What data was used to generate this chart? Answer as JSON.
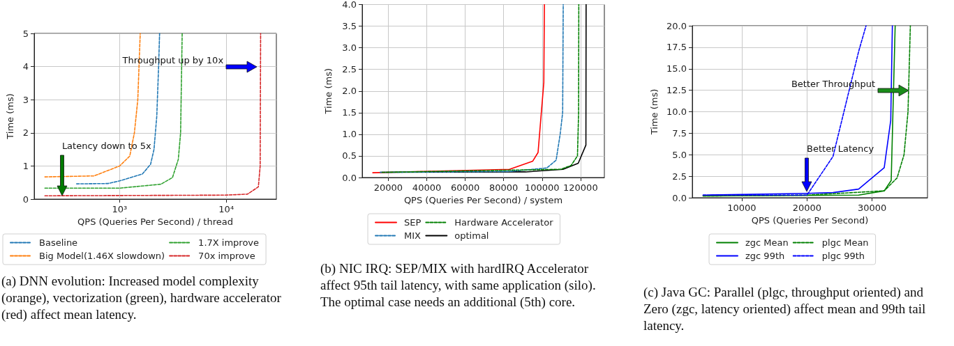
{
  "chart_data": [
    {
      "type": "line",
      "xlabel": "QPS (Queries Per Second) / thread",
      "ylabel": "Time (ms)",
      "log": "x",
      "xlim": [
        158,
        29500
      ],
      "xticks": [
        {
          "value": 1000,
          "label": "10³"
        },
        {
          "value": 10000,
          "label": "10⁴"
        }
      ],
      "ylim": [
        0,
        5
      ],
      "yticks": [
        0,
        1,
        2,
        3,
        4,
        5
      ],
      "grid": true,
      "legend": "bottom",
      "marker": "none",
      "series": [
        {
          "name": "Baseline",
          "color": "#1f77b4",
          "line_style": "dashed",
          "x": [
            395,
            776,
            1000,
            1637,
            1950,
            2100,
            2230,
            2320,
            2370
          ],
          "values": [
            0.46,
            0.47,
            0.55,
            0.76,
            1.05,
            1.5,
            2.5,
            4,
            5
          ]
        },
        {
          "name": "Big Model(1.46X slowdown)",
          "color": "#ff7f0e",
          "line_style": "dashed",
          "x": [
            199,
            575,
            1000,
            1245,
            1375,
            1480,
            1560
          ],
          "values": [
            0.67,
            0.7,
            1.0,
            1.3,
            2.0,
            3,
            5
          ]
        },
        {
          "name": "1.7X improve",
          "color": "#2ca02c",
          "line_style": "dashed",
          "x": [
            199,
            1000,
            2440,
            3130,
            3550,
            3730,
            3860
          ],
          "values": [
            0.33,
            0.33,
            0.45,
            0.65,
            1.2,
            2,
            5
          ]
        },
        {
          "name": "70x improve",
          "color": "#d62728",
          "line_style": "dashed",
          "x": [
            199,
            9850,
            15800,
            20000,
            20800,
            21000
          ],
          "values": [
            0.1,
            0.12,
            0.15,
            0.37,
            1,
            5
          ]
        }
      ],
      "annotations": [
        "Throughput up by 10x",
        "Latency down to 5x",
        "(a) DNN evolution: Increased model complexity (orange), vectorization (green), hardware accelerator (red) affect mean latency."
      ]
    },
    {
      "type": "line",
      "xlabel": "QPS (Queries Per Second) / system",
      "ylabel": "Time (ms)",
      "xlim": [
        6400,
        132400
      ],
      "xticks": [
        20000,
        40000,
        60000,
        80000,
        100000,
        120000
      ],
      "ylim": [
        0,
        4
      ],
      "yticks": [
        {
          "value": 0,
          "label": "0.0"
        },
        {
          "value": 0.5,
          "label": "0.5"
        },
        {
          "value": 1,
          "label": "1.0"
        },
        {
          "value": 1.5,
          "label": "1.5"
        },
        {
          "value": 2,
          "label": "2.0"
        },
        {
          "value": 2.5,
          "label": "2.5"
        },
        {
          "value": 3,
          "label": "3.0"
        },
        {
          "value": 3.5,
          "label": "3.5"
        },
        {
          "value": 4,
          "label": "4.0"
        }
      ],
      "grid": true,
      "legend": "bottom",
      "marker": "none",
      "series": [
        {
          "name": "SEP",
          "color": "#ff0000",
          "line_style": "solid",
          "x": [
            11900,
            83000,
            95150,
            97900,
            100900,
            101200
          ],
          "values": [
            0.11,
            0.19,
            0.38,
            0.58,
            2.2,
            4
          ]
        },
        {
          "name": "MIX",
          "color": "#1f77b4",
          "line_style": "dashed",
          "x": [
            15760,
            83000,
            102400,
            107300,
            109400,
            110700,
            111000
          ],
          "values": [
            0.12,
            0.14,
            0.22,
            0.4,
            1.0,
            1.5,
            4
          ]
        },
        {
          "name": "Hardware Accelerator",
          "color": "#008000",
          "line_style": "dashed",
          "x": [
            16800,
            109700,
            115100,
            118400,
            119000,
            119100
          ],
          "values": [
            0.12,
            0.19,
            0.28,
            0.5,
            1.5,
            4
          ]
        },
        {
          "name": "optimal",
          "color": "#000000",
          "line_style": "solid",
          "x": [
            15760,
            91500,
            110900,
            118800,
            122800,
            122900
          ],
          "values": [
            0.12,
            0.13,
            0.19,
            0.33,
            0.75,
            4
          ]
        }
      ],
      "annotations": [
        "(b) NIC IRQ: SEP/MIX with hardIRQ Accelerator affect 95th tail latency, with same application (silo). The optimal case needs an additional (5th) core."
      ]
    },
    {
      "type": "line",
      "xlabel": "QPS (Queries Per Second)",
      "ylabel": "Time (ms)",
      "xlim": [
        2400,
        38500
      ],
      "xticks": [
        10000,
        20000,
        30000
      ],
      "ylim": [
        0,
        20
      ],
      "yticks": [
        {
          "value": 0,
          "label": "0.0"
        },
        {
          "value": 2.5,
          "label": "2.5"
        },
        {
          "value": 5,
          "label": "5.0"
        },
        {
          "value": 7.5,
          "label": "7.5"
        },
        {
          "value": 10,
          "label": "10.0"
        },
        {
          "value": 12.5,
          "label": "12.5"
        },
        {
          "value": 15,
          "label": "15.0"
        },
        {
          "value": 17.5,
          "label": "17.5"
        },
        {
          "value": 20,
          "label": "20.0"
        }
      ],
      "grid": true,
      "legend": "bottom",
      "marker": "none",
      "series": [
        {
          "name": "zgc Mean",
          "color": "#008000",
          "line_style": "solid",
          "x": [
            4060,
            27930,
            31860,
            32930,
            33540
          ],
          "values": [
            0.2,
            0.3,
            0.8,
            2,
            20
          ]
        },
        {
          "name": "zgc 99th",
          "color": "#0000ff",
          "line_style": "solid",
          "x": [
            4060,
            20000,
            24000,
            27930,
            31860,
            32860,
            33110
          ],
          "values": [
            0.3,
            0.5,
            0.6,
            1.0,
            3.5,
            9,
            20
          ]
        },
        {
          "name": "plgc Mean",
          "color": "#008000",
          "line_style": "dashed",
          "x": [
            4060,
            20000,
            31860,
            33830,
            34900,
            35510,
            35870
          ],
          "values": [
            0.2,
            0.3,
            0.8,
            2.3,
            5,
            10,
            20
          ]
        },
        {
          "name": "plgc 99th",
          "color": "#0000ff",
          "line_style": "dashed",
          "x": [
            4060,
            20000,
            24000,
            27930,
            29070
          ],
          "values": [
            0.3,
            0.3,
            4.8,
            17,
            20
          ]
        }
      ],
      "annotations": [
        "Better Throughput",
        "Better Latency",
        "(c) Java GC: Parallel (plgc, throughput oriented) and Zero (zgc, latency oriented) affect mean and 99th tail latency."
      ]
    }
  ]
}
